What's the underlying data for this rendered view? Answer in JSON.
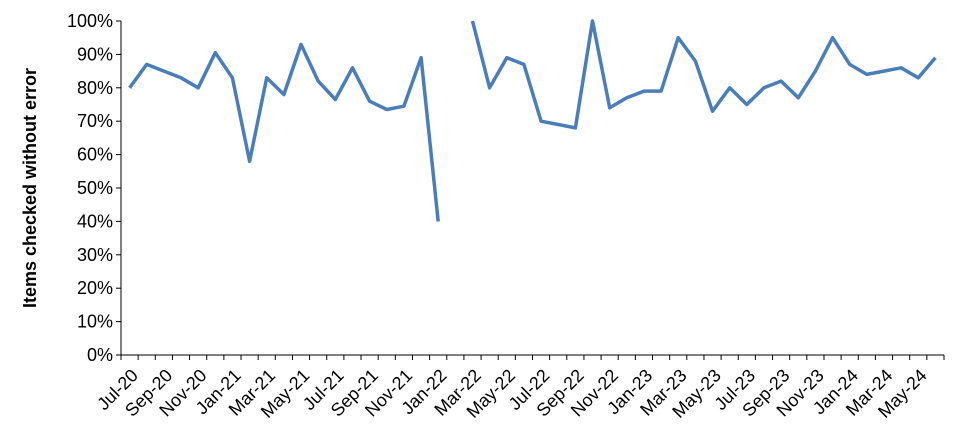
{
  "chart_data": {
    "type": "line",
    "ylabel": "Items checked without error",
    "xlabel": "",
    "ylim": [
      0,
      100
    ],
    "y_ticks": [
      "0%",
      "10%",
      "20%",
      "30%",
      "40%",
      "50%",
      "60%",
      "70%",
      "80%",
      "90%",
      "100%"
    ],
    "x_tick_labels": [
      "Jul-20",
      "Sep-20",
      "Nov-20",
      "Jan-21",
      "Mar-21",
      "May-21",
      "Jul-21",
      "Sep-21",
      "Nov-21",
      "Jan-22",
      "Mar-22",
      "May-22",
      "Jul-22",
      "Sep-22",
      "Nov-22",
      "Jan-23",
      "Mar-23",
      "May-23",
      "Jul-23",
      "Sep-23",
      "Nov-23",
      "Jan-24",
      "Mar-24",
      "May-24"
    ],
    "x": [
      "Jul-20",
      "Aug-20",
      "Sep-20",
      "Oct-20",
      "Nov-20",
      "Dec-20",
      "Jan-21",
      "Feb-21",
      "Mar-21",
      "Apr-21",
      "May-21",
      "Jun-21",
      "Jul-21",
      "Aug-21",
      "Sep-21",
      "Oct-21",
      "Nov-21",
      "Dec-21",
      "Jan-22",
      "Feb-22",
      "Mar-22",
      "Apr-22",
      "May-22",
      "Jun-22",
      "Jul-22",
      "Aug-22",
      "Sep-22",
      "Oct-22",
      "Nov-22",
      "Dec-22",
      "Jan-23",
      "Feb-23",
      "Mar-23",
      "Apr-23",
      "May-23",
      "Jun-23",
      "Jul-23",
      "Aug-23",
      "Sep-23",
      "Oct-23",
      "Nov-23",
      "Dec-23",
      "Jan-24",
      "Feb-24",
      "Mar-24",
      "Apr-24",
      "May-24",
      "Jun-24"
    ],
    "series": [
      {
        "color": "#4a7ebb",
        "values": [
          80,
          87,
          85,
          83,
          80,
          90.5,
          83,
          58,
          83,
          78,
          93,
          82,
          76.5,
          86,
          76,
          73.5,
          74.5,
          89,
          40,
          null,
          100,
          80,
          89,
          87,
          70,
          69,
          68,
          100,
          74,
          77,
          79,
          79,
          95,
          88,
          73,
          80,
          75,
          80,
          82,
          77,
          85,
          95,
          87,
          84,
          85,
          86,
          83,
          89
        ]
      }
    ],
    "grid": false,
    "legend": "none"
  }
}
